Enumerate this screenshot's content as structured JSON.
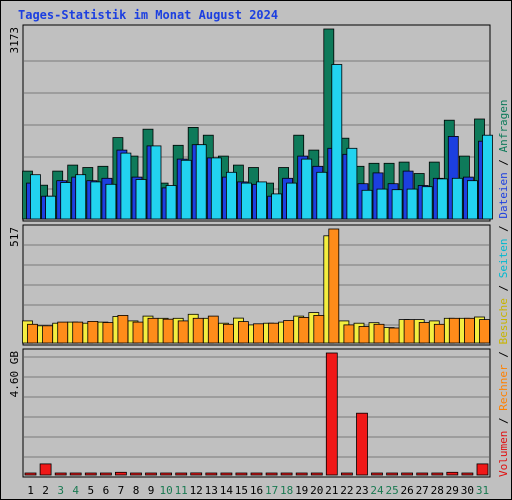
{
  "title": "Tages-Statistik im Monat August 2024",
  "chart_data": [
    {
      "type": "bar",
      "panel": "top",
      "ymax_label": "3173",
      "ymax": 3173,
      "x": [
        1,
        2,
        3,
        4,
        5,
        6,
        7,
        8,
        9,
        10,
        11,
        12,
        13,
        14,
        15,
        16,
        17,
        18,
        19,
        20,
        21,
        22,
        23,
        24,
        25,
        26,
        27,
        28,
        29,
        30,
        31
      ],
      "series": [
        {
          "name": "Anfragen",
          "color": "#0e7a5a",
          "values": [
            800,
            565,
            800,
            900,
            860,
            880,
            1360,
            1050,
            1500,
            600,
            1230,
            1530,
            1400,
            1050,
            900,
            860,
            600,
            860,
            1400,
            1150,
            3173,
            1350,
            880,
            930,
            930,
            950,
            760,
            950,
            1650,
            1050,
            1670
          ]
        },
        {
          "name": "Dateien",
          "color": "#1c3fe0",
          "values": [
            600,
            380,
            640,
            700,
            640,
            680,
            1150,
            700,
            1220,
            520,
            1000,
            1240,
            1020,
            700,
            620,
            580,
            380,
            680,
            1050,
            880,
            1180,
            1080,
            590,
            770,
            590,
            800,
            560,
            680,
            1380,
            700,
            1300
          ]
        },
        {
          "name": "Seiten",
          "color": "#22d3f0",
          "values": [
            740,
            380,
            610,
            740,
            620,
            580,
            1100,
            660,
            1220,
            560,
            980,
            1240,
            1020,
            780,
            600,
            620,
            420,
            600,
            1000,
            780,
            2580,
            1180,
            480,
            500,
            490,
            500,
            540,
            670,
            680,
            640,
            1400
          ]
        }
      ]
    },
    {
      "type": "bar",
      "panel": "middle",
      "ymax_label": "517",
      "ymax": 517,
      "x": [
        1,
        2,
        3,
        4,
        5,
        6,
        7,
        8,
        9,
        10,
        11,
        12,
        13,
        14,
        15,
        16,
        17,
        18,
        19,
        20,
        21,
        22,
        23,
        24,
        25,
        26,
        27,
        28,
        29,
        30,
        31
      ],
      "series": [
        {
          "name": "Besuche",
          "color": "#f4ee40",
          "values": [
            100,
            78,
            90,
            95,
            90,
            95,
            120,
            100,
            122,
            112,
            112,
            130,
            112,
            90,
            113,
            82,
            90,
            95,
            122,
            138,
            486,
            100,
            90,
            92,
            70,
            106,
            106,
            100,
            112,
            112,
            118
          ]
        },
        {
          "name": "Rechner",
          "color": "#ff8c1a",
          "values": [
            85,
            78,
            95,
            95,
            98,
            93,
            125,
            95,
            112,
            108,
            100,
            112,
            122,
            85,
            97,
            87,
            90,
            102,
            116,
            125,
            517,
            82,
            75,
            85,
            68,
            106,
            93,
            85,
            112,
            112,
            106
          ]
        }
      ]
    },
    {
      "type": "bar",
      "panel": "bottom",
      "ymax_label": "4.60 GB",
      "ymax": 4.6,
      "unit": "GB",
      "x": [
        1,
        2,
        3,
        4,
        5,
        6,
        7,
        8,
        9,
        10,
        11,
        12,
        13,
        14,
        15,
        16,
        17,
        18,
        19,
        20,
        21,
        22,
        23,
        24,
        25,
        26,
        27,
        28,
        29,
        30,
        31
      ],
      "series": [
        {
          "name": "Volumen",
          "color": "#f01818",
          "values": [
            0.07,
            0.42,
            0.04,
            0.04,
            0.07,
            0.07,
            0.1,
            0.05,
            0.07,
            0.07,
            0.07,
            0.08,
            0.07,
            0.07,
            0.05,
            0.07,
            0.05,
            0.07,
            0.07,
            0.07,
            4.6,
            0.06,
            2.33,
            0.06,
            0.06,
            0.06,
            0.06,
            0.07,
            0.1,
            0.04,
            0.42
          ]
        }
      ]
    }
  ],
  "x_label_colors": [
    "#000000",
    "#000000",
    "#1a7a52",
    "#1a7a52",
    "#000000",
    "#000000",
    "#000000",
    "#000000",
    "#000000",
    "#1a7a52",
    "#1a7a52",
    "#000000",
    "#000000",
    "#000000",
    "#000000",
    "#000000",
    "#1a7a52",
    "#1a7a52",
    "#000000",
    "#000000",
    "#000000",
    "#000000",
    "#000000",
    "#1a7a52",
    "#1a7a52",
    "#000000",
    "#000000",
    "#000000",
    "#000000",
    "#000000",
    "#1a7a52"
  ],
  "right_legend": [
    {
      "text": "Volumen",
      "color": "#e01010"
    },
    {
      "text": " / ",
      "color": "#000000"
    },
    {
      "text": "Rechner",
      "color": "#ff8000"
    },
    {
      "text": " / ",
      "color": "#000000"
    },
    {
      "text": "Besuche",
      "color": "#c8b400"
    },
    {
      "text": " / ",
      "color": "#000000"
    },
    {
      "text": "Seiten",
      "color": "#00b8d0"
    },
    {
      "text": " / ",
      "color": "#000000"
    },
    {
      "text": "Dateien",
      "color": "#1c3fe0"
    },
    {
      "text": " / ",
      "color": "#000000"
    },
    {
      "text": "Anfragen",
      "color": "#0e7a5a"
    }
  ]
}
